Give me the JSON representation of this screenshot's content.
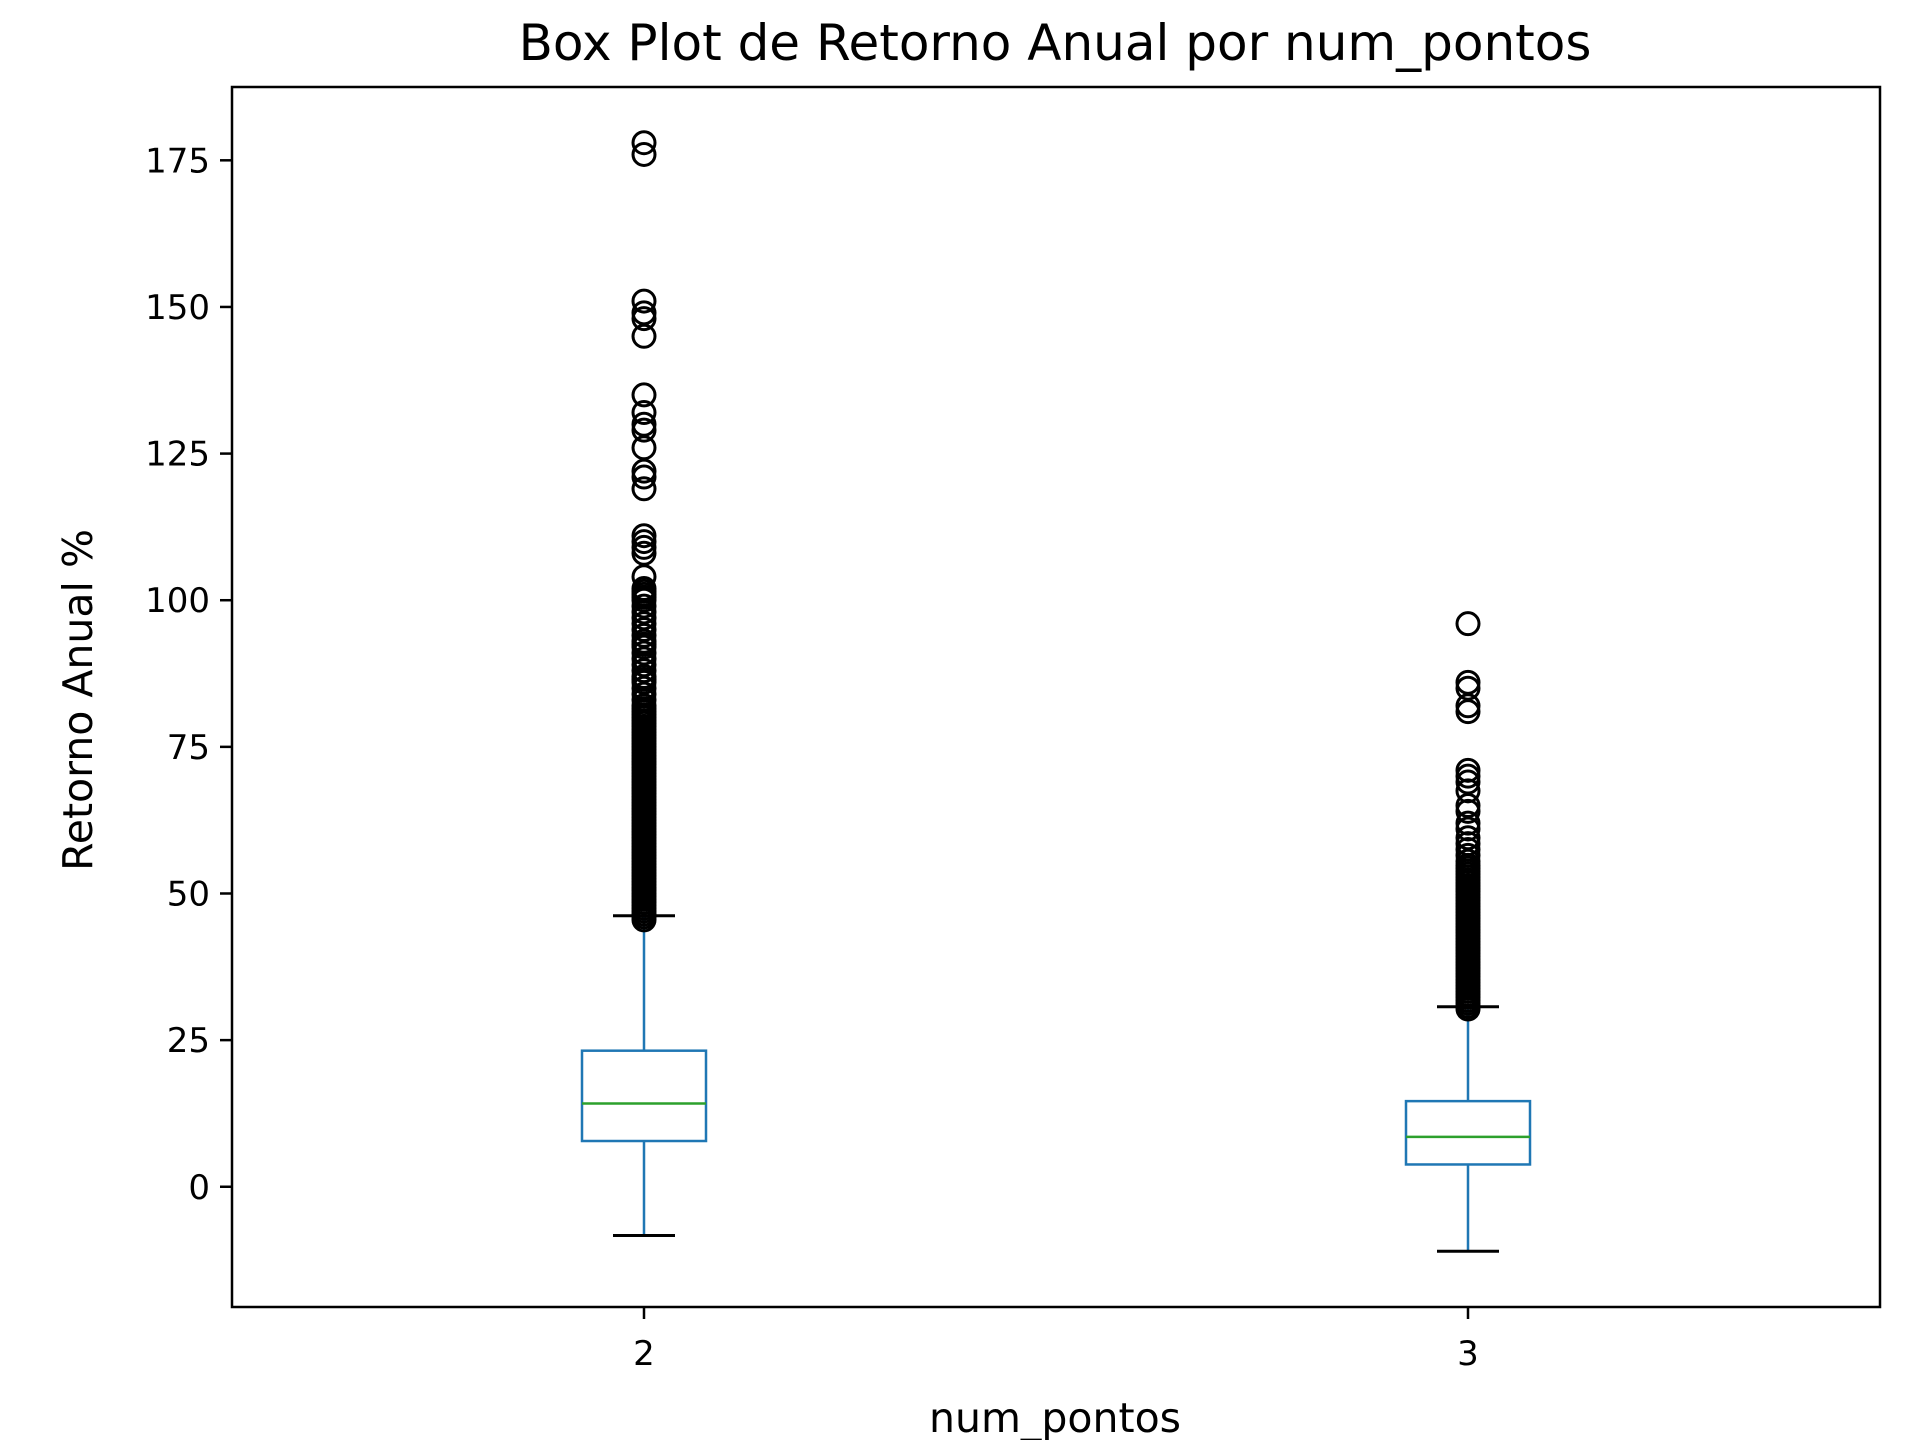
{
  "chart_data": {
    "type": "box",
    "title": "Box Plot de Retorno Anual por num_pontos",
    "xlabel": "num_pontos",
    "ylabel": "Retorno Anual %",
    "ylim": [
      -20.5,
      187.5
    ],
    "yticks": [
      0,
      25,
      50,
      75,
      100,
      125,
      150,
      175
    ],
    "categories": [
      "2",
      "3"
    ],
    "grid": false,
    "legend": "none",
    "colors": {
      "box": "#1f77b4",
      "median": "#2ca02c",
      "whisker": "#1f77b4",
      "cap": "#000000",
      "flier": "#000000"
    },
    "boxes": [
      {
        "category": "2",
        "whisker_low": -8.3,
        "q1": 7.8,
        "median": 14.2,
        "q3": 23.2,
        "whisker_high": 46.2,
        "fliers": [
          45.5,
          46,
          46.5,
          47,
          47.5,
          48,
          48.5,
          49,
          49.5,
          50,
          50.5,
          51,
          51.5,
          52,
          52.5,
          53,
          53.5,
          54,
          54.5,
          55,
          55.5,
          56,
          56.5,
          57,
          57.5,
          58,
          58.5,
          59,
          59.5,
          60,
          60.5,
          61,
          61.5,
          62,
          62.5,
          63,
          63.5,
          64,
          64.5,
          65,
          65.5,
          66,
          66.5,
          67,
          67.5,
          68,
          68.5,
          69,
          69.5,
          70,
          70.5,
          71,
          71.5,
          72,
          72.5,
          73,
          73.5,
          74,
          74.5,
          75,
          75.5,
          76,
          76.5,
          77,
          77.5,
          78,
          78.5,
          79,
          79.5,
          80,
          80.5,
          81,
          81.5,
          82,
          83,
          84,
          85,
          86,
          86.5,
          87,
          88,
          89,
          90,
          91,
          92,
          92.5,
          93,
          94,
          95,
          96,
          97,
          98,
          99,
          100,
          100.5,
          101,
          101.5,
          102,
          104,
          108,
          109,
          110,
          111,
          119,
          121,
          122,
          126,
          129,
          130,
          132,
          135,
          145,
          148,
          149,
          151,
          176,
          178
        ]
      },
      {
        "category": "3",
        "whisker_low": -11,
        "q1": 3.8,
        "median": 8.5,
        "q3": 14.6,
        "whisker_high": 30.7,
        "fliers": [
          30.3,
          30.8,
          31.3,
          31.8,
          32.3,
          32.8,
          33.3,
          33.8,
          34.3,
          34.8,
          35.3,
          35.8,
          36.3,
          36.8,
          37.3,
          37.8,
          38.3,
          38.8,
          39.3,
          39.8,
          40.3,
          40.8,
          41.3,
          41.8,
          42.3,
          42.8,
          43.3,
          43.8,
          44.3,
          44.8,
          45.3,
          45.8,
          46.3,
          46.8,
          47.3,
          47.8,
          48.3,
          48.8,
          49.3,
          49.8,
          50.3,
          50.8,
          51.3,
          51.8,
          52.3,
          52.8,
          53.3,
          53.8,
          54.3,
          54.8,
          55.5,
          56.5,
          57.5,
          58.5,
          59.5,
          61,
          62,
          64,
          65,
          67.5,
          69,
          70,
          71,
          81,
          82,
          85,
          86,
          96
        ]
      }
    ]
  }
}
